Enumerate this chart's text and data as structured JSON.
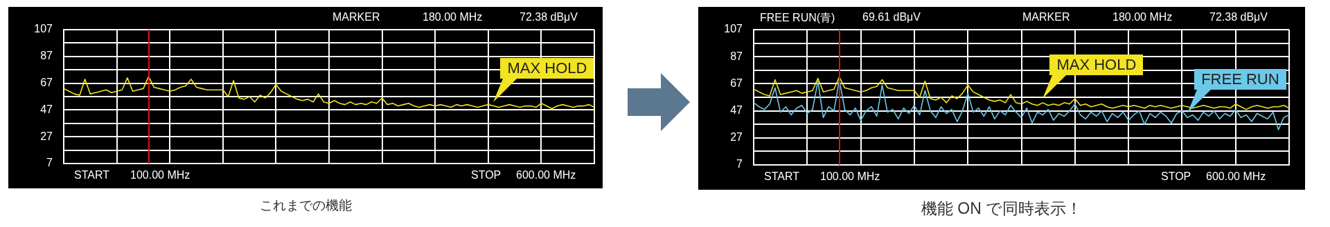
{
  "chart_data": [
    {
      "type": "line",
      "categories": [
        null,
        null,
        null,
        null,
        null,
        null,
        null,
        null,
        null,
        null,
        null,
        null,
        null,
        null,
        null,
        null,
        null,
        null,
        null,
        null,
        null,
        null,
        null,
        null,
        null,
        null,
        null,
        null,
        null,
        null,
        null,
        null,
        null,
        null,
        null,
        null,
        null,
        null,
        null,
        null,
        null,
        null,
        null,
        null,
        null,
        null,
        null,
        null,
        null,
        null,
        null,
        null,
        null,
        null,
        null,
        null,
        null,
        null,
        null,
        null,
        null,
        null,
        null,
        null,
        null,
        null,
        null,
        null,
        null,
        null,
        null,
        null,
        null,
        null,
        null,
        null,
        null,
        null,
        null,
        null,
        null,
        null,
        null,
        null,
        null,
        null,
        null,
        null,
        null,
        null,
        null,
        null,
        null,
        null,
        null,
        null,
        null,
        null,
        null,
        null,
        null
      ],
      "series": [
        {
          "name": "MAX HOLD",
          "color": "#f2e422",
          "values": [
            63,
            61,
            59,
            58,
            70,
            59,
            60,
            61,
            62,
            60,
            61,
            62,
            71,
            61,
            62,
            63,
            72,
            64,
            63,
            62,
            61,
            62,
            64,
            65,
            70,
            64,
            63,
            62,
            62,
            62,
            62,
            57,
            69,
            56,
            55,
            57,
            53,
            58,
            56,
            60,
            66,
            61,
            59,
            57,
            55,
            54,
            55,
            53,
            59,
            53,
            52,
            54,
            52,
            51,
            53,
            51,
            52,
            51,
            53,
            52,
            56,
            51,
            52,
            50,
            51,
            52,
            50,
            49,
            50,
            51,
            50,
            51,
            50,
            49,
            51,
            50,
            51,
            50,
            49,
            50,
            51,
            50,
            49,
            50,
            51,
            50,
            49,
            50,
            50,
            49,
            52,
            50,
            48,
            50,
            51,
            50,
            49,
            50,
            50,
            51,
            49
          ]
        }
      ],
      "ylim": [
        7,
        107
      ],
      "yticks": [
        7,
        {
          "value": 17,
          "label": null
        },
        27,
        {
          "value": 37,
          "label": null
        },
        47,
        {
          "value": 57,
          "label": null
        },
        67,
        {
          "value": 77,
          "label": null
        },
        87,
        {
          "value": 97,
          "label": null
        },
        107
      ],
      "grid": true,
      "legend": false,
      "marker": "none",
      "line_style": "solid",
      "annotations": [
        "MARKER",
        "180.00 MHz",
        "72.38 dBμV",
        "START",
        "100.00 MHz",
        "STOP",
        "600.00 MHz",
        "これまでの機能"
      ]
    },
    {
      "type": "line",
      "categories": [
        null,
        null,
        null,
        null,
        null,
        null,
        null,
        null,
        null,
        null,
        null,
        null,
        null,
        null,
        null,
        null,
        null,
        null,
        null,
        null,
        null,
        null,
        null,
        null,
        null,
        null,
        null,
        null,
        null,
        null,
        null,
        null,
        null,
        null,
        null,
        null,
        null,
        null,
        null,
        null,
        null,
        null,
        null,
        null,
        null,
        null,
        null,
        null,
        null,
        null,
        null,
        null,
        null,
        null,
        null,
        null,
        null,
        null,
        null,
        null,
        null,
        null,
        null,
        null,
        null,
        null,
        null,
        null,
        null,
        null,
        null,
        null,
        null,
        null,
        null,
        null,
        null,
        null,
        null,
        null,
        null,
        null,
        null,
        null,
        null,
        null,
        null,
        null,
        null,
        null,
        null,
        null,
        null,
        null,
        null,
        null,
        null,
        null,
        null,
        null,
        null
      ],
      "series": [
        {
          "name": "MAX HOLD",
          "color": "#f2e422",
          "values": [
            63,
            61,
            59,
            58,
            70,
            59,
            60,
            61,
            62,
            60,
            61,
            62,
            71,
            61,
            62,
            63,
            72,
            64,
            63,
            62,
            61,
            62,
            64,
            65,
            70,
            64,
            63,
            62,
            62,
            62,
            62,
            57,
            69,
            56,
            55,
            57,
            53,
            58,
            56,
            60,
            66,
            61,
            59,
            57,
            55,
            54,
            55,
            53,
            59,
            53,
            52,
            54,
            52,
            51,
            53,
            51,
            52,
            51,
            53,
            52,
            56,
            51,
            52,
            50,
            51,
            52,
            50,
            49,
            50,
            51,
            50,
            51,
            50,
            49,
            51,
            50,
            51,
            50,
            49,
            50,
            51,
            50,
            49,
            50,
            51,
            50,
            49,
            50,
            50,
            49,
            52,
            50,
            48,
            50,
            51,
            50,
            49,
            50,
            50,
            51,
            49
          ]
        },
        {
          "name": "FREE RUN",
          "color": "#6cc8e8",
          "values": [
            53,
            50,
            48,
            52,
            64,
            46,
            50,
            44,
            49,
            51,
            45,
            48,
            69,
            42,
            50,
            47,
            70,
            48,
            44,
            49,
            40,
            47,
            50,
            43,
            66,
            46,
            48,
            41,
            49,
            45,
            51,
            44,
            62,
            47,
            42,
            50,
            45,
            48,
            39,
            47,
            60,
            46,
            49,
            43,
            50,
            41,
            47,
            44,
            51,
            46,
            42,
            49,
            38,
            46,
            44,
            48,
            40,
            45,
            43,
            47,
            52,
            44,
            41,
            46,
            43,
            47,
            39,
            45,
            42,
            46,
            40,
            44,
            47,
            37,
            45,
            42,
            46,
            43,
            38,
            45,
            47,
            42,
            44,
            40,
            46,
            43,
            47,
            41,
            45,
            43,
            48,
            42,
            44,
            39,
            45,
            43,
            41,
            46,
            33,
            42,
            44
          ]
        }
      ],
      "ylim": [
        7,
        107
      ],
      "yticks": [
        7,
        {
          "value": 17,
          "label": null
        },
        27,
        {
          "value": 37,
          "label": null
        },
        47,
        {
          "value": 57,
          "label": null
        },
        67,
        {
          "value": 77,
          "label": null
        },
        87,
        {
          "value": 97,
          "label": null
        },
        107
      ],
      "grid": true,
      "legend": false,
      "marker": "none",
      "line_style": "solid",
      "annotations": [
        "FREE RUN(青)",
        "69.61 dBμV",
        "MARKER",
        "180.00 MHz",
        "72.38 dBμV",
        "START",
        "100.00 MHz",
        "STOP",
        "600.00 MHz",
        "機能 ON で同時表示！"
      ]
    }
  ]
}
